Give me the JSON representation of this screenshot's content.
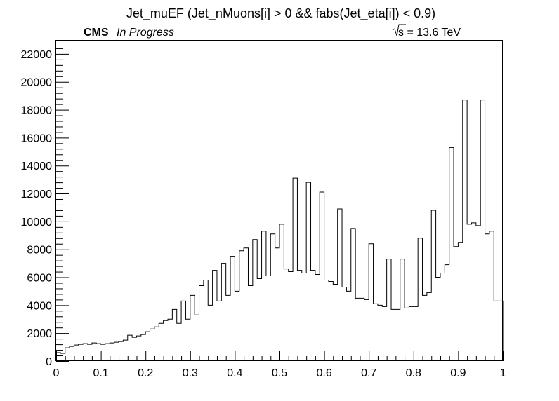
{
  "header": {
    "title": "Jet_muEF (Jet_nMuons[i] > 0 && fabs(Jet_eta[i]) < 0.9)",
    "experiment": "CMS",
    "status": "In Progress",
    "energy": "s = 13.6 TeV"
  },
  "chart_data": {
    "type": "histogram",
    "title": "Jet_muEF (Jet_nMuons[i] > 0 && fabs(Jet_eta[i]) < 0.9)",
    "xlabel": "",
    "ylabel": "",
    "xlim": [
      0,
      1
    ],
    "ylim": [
      0,
      23000
    ],
    "bin_width": 0.01,
    "x_ticks": [
      "0",
      "0.1",
      "0.2",
      "0.3",
      "0.4",
      "0.5",
      "0.6",
      "0.7",
      "0.8",
      "0.9",
      "1"
    ],
    "y_ticks": [
      "0",
      "2000",
      "4000",
      "6000",
      "8000",
      "10000",
      "12000",
      "14000",
      "16000",
      "18000",
      "20000",
      "22000"
    ],
    "grid": false,
    "values": [
      600,
      550,
      950,
      1050,
      1150,
      1200,
      1250,
      1200,
      1300,
      1250,
      1200,
      1250,
      1300,
      1350,
      1400,
      1500,
      1850,
      1700,
      1800,
      1900,
      2100,
      2300,
      2450,
      2700,
      2900,
      3000,
      3700,
      2700,
      4300,
      3000,
      4700,
      3300,
      5400,
      5800,
      4000,
      6500,
      4300,
      7000,
      4700,
      7500,
      5000,
      7900,
      8100,
      5400,
      8700,
      5900,
      9300,
      6100,
      9100,
      8100,
      9800,
      6600,
      6400,
      13100,
      6500,
      6300,
      12800,
      6500,
      6200,
      12100,
      5800,
      5700,
      5500,
      10900,
      5300,
      5000,
      9500,
      4500,
      4500,
      4400,
      8400,
      4100,
      4000,
      3900,
      7300,
      3700,
      3700,
      7300,
      3800,
      3900,
      3900,
      8800,
      4700,
      4900,
      10800,
      6000,
      6300,
      6900,
      15300,
      8200,
      8500,
      18700,
      9800,
      9900,
      9700,
      18700,
      9100,
      9300,
      4300,
      4300
    ]
  }
}
